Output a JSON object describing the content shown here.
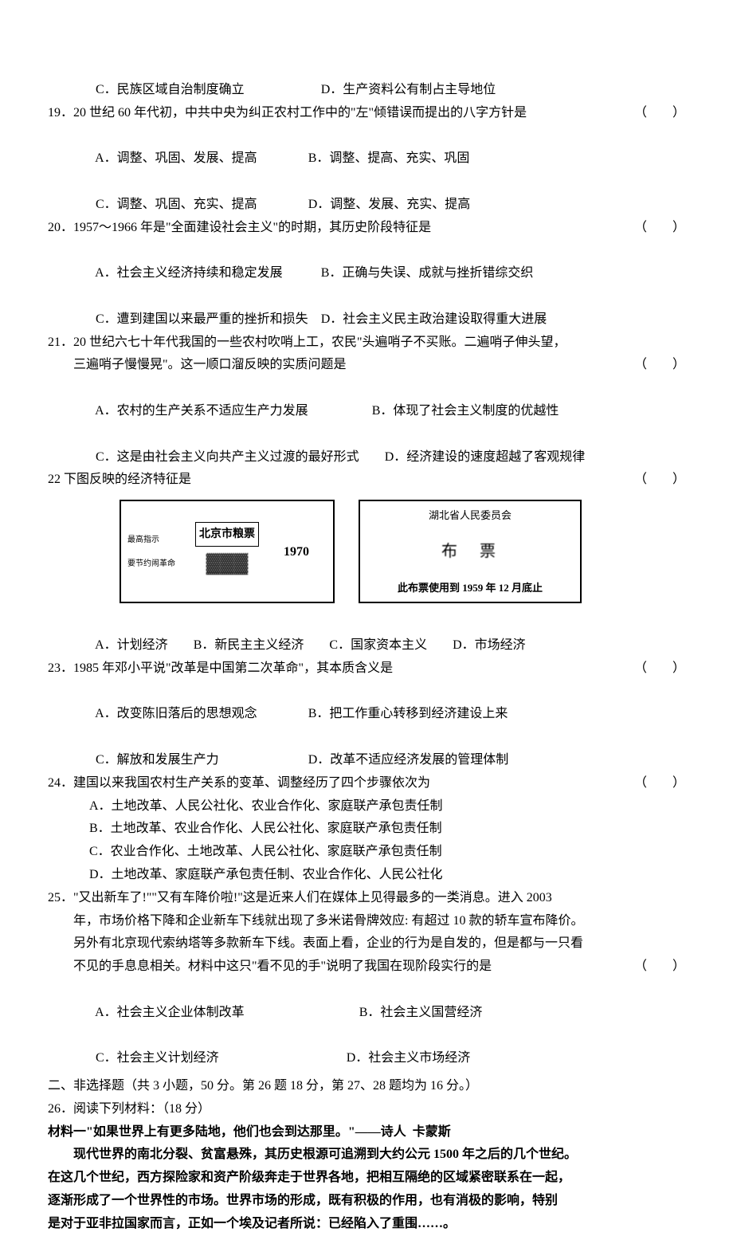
{
  "q18": {
    "optC": "C．民族区域自治制度确立",
    "optD": "D．生产资料公有制占主导地位"
  },
  "q19": {
    "stem": "19．20 世纪 60 年代初，中共中央为纠正农村工作中的\"左\"倾错误而提出的八字方针是",
    "paren": "（　　）",
    "optA": "A．调整、巩固、发展、提高",
    "optB": "B．调整、提高、充实、巩固",
    "optC": "C．调整、巩固、充实、提高",
    "optD": "D．调整、发展、充实、提高"
  },
  "q20": {
    "stem": "20．1957～1966 年是\"全面建设社会主义\"的时期，其历史阶段特征是",
    "paren": "（　　）",
    "optA": "A．社会主义经济持续和稳定发展",
    "optB": "B．正确与失误、成就与挫折错综交织",
    "optC": "C．遭到建国以来最严重的挫折和损失",
    "optD": "D．社会主义民主政治建设取得重大进展"
  },
  "q21": {
    "stem1": "21．20 世纪六七十年代我国的一些农村吹哨上工，农民\"头遍哨子不买账。二遍哨子伸头望，",
    "stem2": "三遍哨子慢慢晃\"。这一顺口溜反映的实质问题是",
    "paren": "（　　）",
    "optA": "A．农村的生产关系不适应生产力发展",
    "optB": "B．体现了社会主义制度的优越性",
    "optC": "C．这是由社会主义向共产主义过渡的最好形式",
    "optD": "D．经济建设的速度超越了客观规律"
  },
  "q22": {
    "stem": "22 下图反映的经济特征是",
    "paren": "（　　）",
    "stamp1_title": "北京市粮票",
    "stamp1_small1": "最高指示",
    "stamp1_small2": "要节约闹革命",
    "stamp1_year": "1970",
    "stamp2_title": "湖北省人民委员会",
    "stamp2_mid": "布　票",
    "stamp2_bottom": "此布票使用到 1959 年 12 月底止",
    "optA": "A．计划经济",
    "optB": "B．新民主主义经济",
    "optC": "C．国家资本主义",
    "optD": "D．市场经济"
  },
  "q23": {
    "stem": "23．1985 年邓小平说\"改革是中国第二次革命\"，其本质含义是",
    "paren": "（　　）",
    "optA": "A．改变陈旧落后的思想观念",
    "optB": "B．把工作重心转移到经济建设上来",
    "optC": "C．解放和发展生产力",
    "optD": "D．改革不适应经济发展的管理体制"
  },
  "q24": {
    "stem": "24．建国以来我国农村生产关系的变革、调整经历了四个步骤依次为",
    "paren": "（　　）",
    "optA": "A．土地改革、人民公社化、农业合作化、家庭联产承包责任制",
    "optB": "B．土地改革、农业合作化、人民公社化、家庭联产承包责任制",
    "optC": "C．农业合作化、土地改革、人民公社化、家庭联产承包责任制",
    "optD": "D．土地改革、家庭联产承包责任制、农业合作化、人民公社化"
  },
  "q25": {
    "stem1": "25．\"又出新车了!\"\"又有车降价啦!\"这是近来人们在媒体上见得最多的一类消息。进入 2003",
    "stem2": "年，市场价格下降和企业新车下线就出现了多米诺骨牌效应: 有超过 10 款的轿车宣布降价。",
    "stem3": "另外有北京现代索纳塔等多款新车下线。表面上看，企业的行为是自发的，但是都与一只看",
    "stem4": "不见的手息息相关。材料中这只\"看不见的手\"说明了我国在现阶段实行的是",
    "paren": "（　　）",
    "optA": "A．社会主义企业体制改革",
    "optB": "B．社会主义国营经济",
    "optC": "C．社会主义计划经济",
    "optD": "D．社会主义市场经济"
  },
  "section2": {
    "header": "二、非选择题（共 3 小题，50 分。第 26 题 18 分，第 27、28 题均为 16 分。）",
    "q26_title": "26．阅读下列材料：（18 分）",
    "mat1_title": "材料一\"如果世界上有更多陆地，他们也会到达那里。\"——诗人  卡蒙斯",
    "p1": "现代世界的南北分裂、贫富悬殊，其历史根源可追溯到大约公元 1500 年之后的几个世纪。",
    "p2": "在这几个世纪，西方探险家和资产阶级奔走于世界各地，把相互隔绝的区域紧密联系在一起，",
    "p3": "逐渐形成了一个世界性的市场。世界市场的形成，既有积极的作用，也有消极的影响，特别",
    "p4": "是对于亚非拉国家而言，正如一个埃及记者所说：已经陷入了重围……。"
  }
}
